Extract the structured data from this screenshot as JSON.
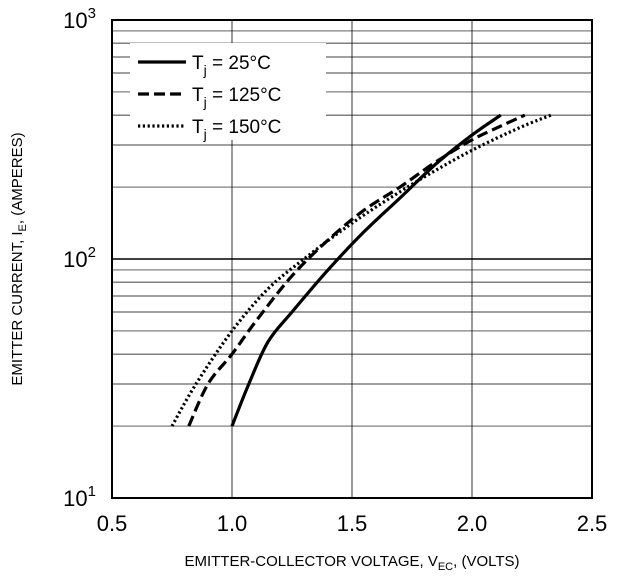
{
  "chart_data": {
    "type": "line",
    "xlabel": {
      "text": "EMITTER-COLLECTOR VOLTAGE, V",
      "sub": "EC",
      "suffix": ", (VOLTS)"
    },
    "ylabel": {
      "text": "EMITTER CURRENT, I",
      "sub": "E",
      "suffix": ", (AMPERES)"
    },
    "xlim": [
      0.5,
      2.5
    ],
    "ylim": [
      10,
      1000
    ],
    "yscale": "log",
    "grid": true,
    "legend_position": "top-left",
    "x_ticks": [
      {
        "value": 0.5,
        "label": "0.5"
      },
      {
        "value": 1.0,
        "label": "1.0"
      },
      {
        "value": 1.5,
        "label": "1.5"
      },
      {
        "value": 2.0,
        "label": "2.0"
      },
      {
        "value": 2.5,
        "label": "2.5"
      }
    ],
    "y_ticks": [
      {
        "value": 10,
        "base": "10",
        "exp": "1"
      },
      {
        "value": 100,
        "base": "10",
        "exp": "2"
      },
      {
        "value": 1000,
        "base": "10",
        "exp": "3"
      }
    ],
    "series": [
      {
        "name": "T",
        "name_sub": "j",
        "name_suffix": " = 25°C",
        "style": "solid",
        "points": [
          [
            1.0,
            20
          ],
          [
            1.07,
            30
          ],
          [
            1.15,
            45
          ],
          [
            1.25,
            60
          ],
          [
            1.4,
            90
          ],
          [
            1.55,
            130
          ],
          [
            1.7,
            180
          ],
          [
            1.85,
            250
          ],
          [
            2.0,
            330
          ],
          [
            2.12,
            400
          ]
        ]
      },
      {
        "name": "T",
        "name_sub": "j",
        "name_suffix": " = 125°C",
        "style": "dashed",
        "points": [
          [
            0.82,
            20
          ],
          [
            0.9,
            30
          ],
          [
            1.0,
            40
          ],
          [
            1.1,
            55
          ],
          [
            1.25,
            85
          ],
          [
            1.4,
            120
          ],
          [
            1.55,
            160
          ],
          [
            1.7,
            200
          ],
          [
            1.85,
            255
          ],
          [
            2.0,
            315
          ],
          [
            2.12,
            360
          ],
          [
            2.22,
            400
          ]
        ]
      },
      {
        "name": "T",
        "name_sub": "j",
        "name_suffix": " = 150°C",
        "style": "dotted",
        "points": [
          [
            0.75,
            20
          ],
          [
            0.85,
            30
          ],
          [
            1.0,
            50
          ],
          [
            1.15,
            75
          ],
          [
            1.3,
            100
          ],
          [
            1.45,
            130
          ],
          [
            1.6,
            165
          ],
          [
            1.8,
            220
          ],
          [
            2.0,
            285
          ],
          [
            2.2,
            355
          ],
          [
            2.33,
            400
          ]
        ]
      }
    ]
  }
}
